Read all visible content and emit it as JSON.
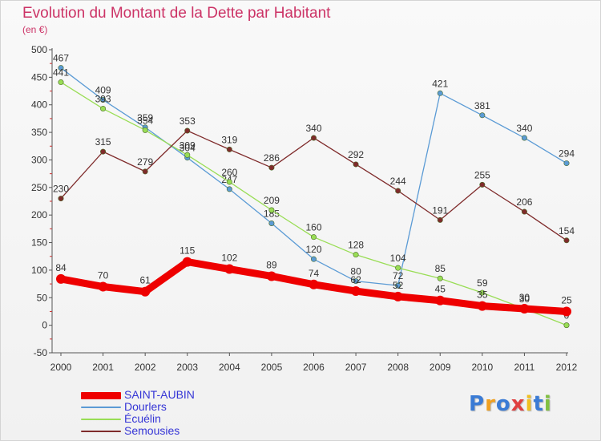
{
  "chart_data": {
    "type": "line",
    "title": "Evolution du Montant de la Dette par Habitant",
    "subtitle": "(en €)",
    "x": [
      "2000",
      "2001",
      "2002",
      "2003",
      "2004",
      "2005",
      "2006",
      "2007",
      "2008",
      "2009",
      "2010",
      "2011",
      "2012"
    ],
    "y_ticks": [
      "500",
      "450",
      "400",
      "350",
      "300",
      "250",
      "200",
      "150",
      "100",
      "50",
      "0",
      "-50"
    ],
    "ylim": [
      -50,
      500
    ],
    "grid": false,
    "legend_position": "bottom-left",
    "series": [
      {
        "name": "SAINT-AUBIN",
        "color": "#ee0000",
        "values": [
          84,
          70,
          61,
          115,
          102,
          89,
          74,
          62,
          52,
          45,
          35,
          30,
          25
        ]
      },
      {
        "name": "Dourlers",
        "color": "#5b9bd5",
        "values": [
          467,
          409,
          359,
          304,
          247,
          185,
          120,
          80,
          72,
          421,
          381,
          340,
          294
        ]
      },
      {
        "name": "Écuélin",
        "color": "#99dd55",
        "values": [
          441,
          393,
          354,
          309,
          260,
          209,
          160,
          128,
          104,
          85,
          59,
          30,
          0
        ]
      },
      {
        "name": "Semousies",
        "color": "#7f2b2b",
        "values": [
          230,
          315,
          279,
          353,
          319,
          286,
          340,
          292,
          244,
          191,
          255,
          206,
          154
        ]
      }
    ]
  },
  "brand": {
    "letters": [
      "P",
      "r",
      "o",
      "x",
      "i",
      "t",
      "i"
    ],
    "colors": [
      "#3a7bd5",
      "#f0a020",
      "#3a7bd5",
      "#e04040",
      "#f0c020",
      "#3a7bd5",
      "#80c040"
    ]
  }
}
